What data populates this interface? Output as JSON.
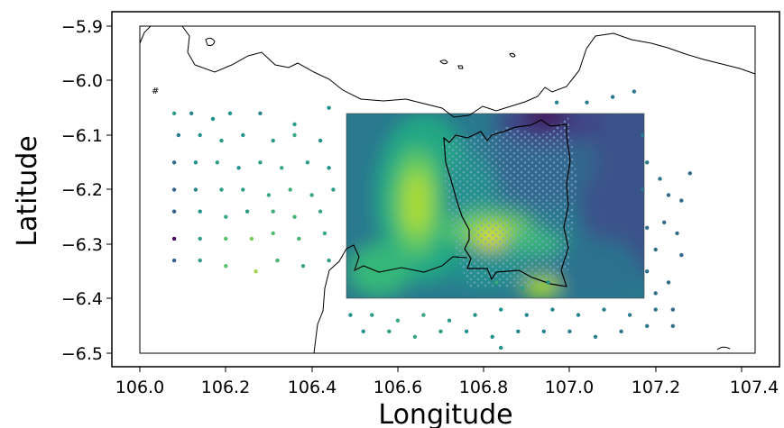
{
  "chart_data": {
    "type": "scatter",
    "xlabel": "Longitude",
    "ylabel": "Latitude",
    "xlim": [
      105.98,
      107.4
    ],
    "ylim": [
      -6.52,
      -5.87
    ],
    "x_ticks": [
      "106.0",
      "106.2",
      "106.4",
      "106.6",
      "106.8",
      "107.0",
      "107.2",
      "107.4"
    ],
    "y_ticks": [
      "−5.9",
      "−6.0",
      "−6.1",
      "−6.2",
      "−6.3",
      "−6.4",
      "−6.5"
    ],
    "grid": false,
    "colormap": "viridis",
    "contour_extent": {
      "lon": [
        106.47,
        107.15
      ],
      "lat": [
        -6.4,
        -6.06
      ]
    },
    "colors": {
      "axis": "#000000",
      "coast": "#000000",
      "viridis": [
        "#440154",
        "#3b528b",
        "#21918c",
        "#5ec962",
        "#fde725"
      ]
    },
    "stations": [
      {
        "lon": 106.08,
        "lat": -6.06,
        "v": 0.55
      },
      {
        "lon": 106.12,
        "lat": -6.06,
        "v": 0.45
      },
      {
        "lon": 106.17,
        "lat": -6.07,
        "v": 0.5
      },
      {
        "lon": 106.21,
        "lat": -6.06,
        "v": 0.5
      },
      {
        "lon": 106.28,
        "lat": -6.06,
        "v": 0.45
      },
      {
        "lon": 106.36,
        "lat": -6.08,
        "v": 0.55
      },
      {
        "lon": 106.44,
        "lat": -6.05,
        "v": 0.5
      },
      {
        "lon": 106.09,
        "lat": -6.1,
        "v": 0.4
      },
      {
        "lon": 106.14,
        "lat": -6.1,
        "v": 0.5
      },
      {
        "lon": 106.19,
        "lat": -6.11,
        "v": 0.55
      },
      {
        "lon": 106.24,
        "lat": -6.1,
        "v": 0.5
      },
      {
        "lon": 106.31,
        "lat": -6.11,
        "v": 0.55
      },
      {
        "lon": 106.36,
        "lat": -6.1,
        "v": 0.6
      },
      {
        "lon": 106.42,
        "lat": -6.11,
        "v": 0.5
      },
      {
        "lon": 106.08,
        "lat": -6.15,
        "v": 0.35
      },
      {
        "lon": 106.13,
        "lat": -6.15,
        "v": 0.5
      },
      {
        "lon": 106.18,
        "lat": -6.15,
        "v": 0.55
      },
      {
        "lon": 106.23,
        "lat": -6.16,
        "v": 0.5
      },
      {
        "lon": 106.28,
        "lat": -6.15,
        "v": 0.55
      },
      {
        "lon": 106.33,
        "lat": -6.16,
        "v": 0.6
      },
      {
        "lon": 106.39,
        "lat": -6.15,
        "v": 0.55
      },
      {
        "lon": 106.44,
        "lat": -6.16,
        "v": 0.5
      },
      {
        "lon": 106.08,
        "lat": -6.2,
        "v": 0.3
      },
      {
        "lon": 106.13,
        "lat": -6.2,
        "v": 0.45
      },
      {
        "lon": 106.19,
        "lat": -6.2,
        "v": 0.55
      },
      {
        "lon": 106.24,
        "lat": -6.2,
        "v": 0.55
      },
      {
        "lon": 106.3,
        "lat": -6.21,
        "v": 0.6
      },
      {
        "lon": 106.35,
        "lat": -6.2,
        "v": 0.62
      },
      {
        "lon": 106.4,
        "lat": -6.21,
        "v": 0.58
      },
      {
        "lon": 106.45,
        "lat": -6.2,
        "v": 0.55
      },
      {
        "lon": 106.08,
        "lat": -6.24,
        "v": 0.3
      },
      {
        "lon": 106.14,
        "lat": -6.24,
        "v": 0.5
      },
      {
        "lon": 106.2,
        "lat": -6.25,
        "v": 0.6
      },
      {
        "lon": 106.25,
        "lat": -6.24,
        "v": 0.55
      },
      {
        "lon": 106.31,
        "lat": -6.24,
        "v": 0.62
      },
      {
        "lon": 106.36,
        "lat": -6.25,
        "v": 0.65
      },
      {
        "lon": 106.42,
        "lat": -6.24,
        "v": 0.6
      },
      {
        "lon": 106.08,
        "lat": -6.29,
        "v": 0.02
      },
      {
        "lon": 106.14,
        "lat": -6.29,
        "v": 0.55
      },
      {
        "lon": 106.2,
        "lat": -6.29,
        "v": 0.7
      },
      {
        "lon": 106.26,
        "lat": -6.29,
        "v": 0.78
      },
      {
        "lon": 106.31,
        "lat": -6.28,
        "v": 0.7
      },
      {
        "lon": 106.37,
        "lat": -6.29,
        "v": 0.65
      },
      {
        "lon": 106.43,
        "lat": -6.28,
        "v": 0.6
      },
      {
        "lon": 106.08,
        "lat": -6.33,
        "v": 0.3
      },
      {
        "lon": 106.14,
        "lat": -6.33,
        "v": 0.55
      },
      {
        "lon": 106.2,
        "lat": -6.34,
        "v": 0.72
      },
      {
        "lon": 106.27,
        "lat": -6.35,
        "v": 0.85
      },
      {
        "lon": 106.32,
        "lat": -6.33,
        "v": 0.65
      },
      {
        "lon": 106.38,
        "lat": -6.34,
        "v": 0.6
      },
      {
        "lon": 106.44,
        "lat": -6.33,
        "v": 0.55
      },
      {
        "lon": 106.49,
        "lat": -6.43,
        "v": 0.5
      },
      {
        "lon": 106.54,
        "lat": -6.43,
        "v": 0.55
      },
      {
        "lon": 106.6,
        "lat": -6.44,
        "v": 0.6
      },
      {
        "lon": 106.66,
        "lat": -6.43,
        "v": 0.6
      },
      {
        "lon": 106.72,
        "lat": -6.44,
        "v": 0.55
      },
      {
        "lon": 106.78,
        "lat": -6.43,
        "v": 0.5
      },
      {
        "lon": 106.84,
        "lat": -6.42,
        "v": 0.5
      },
      {
        "lon": 106.9,
        "lat": -6.43,
        "v": 0.45
      },
      {
        "lon": 106.96,
        "lat": -6.42,
        "v": 0.45
      },
      {
        "lon": 107.02,
        "lat": -6.43,
        "v": 0.45
      },
      {
        "lon": 107.08,
        "lat": -6.42,
        "v": 0.42
      },
      {
        "lon": 107.14,
        "lat": -6.43,
        "v": 0.42
      },
      {
        "lon": 107.2,
        "lat": -6.42,
        "v": 0.4
      },
      {
        "lon": 106.52,
        "lat": -6.46,
        "v": 0.5
      },
      {
        "lon": 106.58,
        "lat": -6.46,
        "v": 0.55
      },
      {
        "lon": 106.64,
        "lat": -6.47,
        "v": 0.6
      },
      {
        "lon": 106.7,
        "lat": -6.46,
        "v": 0.55
      },
      {
        "lon": 106.76,
        "lat": -6.46,
        "v": 0.5
      },
      {
        "lon": 106.82,
        "lat": -6.47,
        "v": 0.5
      },
      {
        "lon": 106.88,
        "lat": -6.46,
        "v": 0.45
      },
      {
        "lon": 106.94,
        "lat": -6.46,
        "v": 0.45
      },
      {
        "lon": 107.0,
        "lat": -6.46,
        "v": 0.42
      },
      {
        "lon": 107.06,
        "lat": -6.47,
        "v": 0.42
      },
      {
        "lon": 107.12,
        "lat": -6.46,
        "v": 0.4
      },
      {
        "lon": 107.18,
        "lat": -6.45,
        "v": 0.38
      },
      {
        "lon": 107.24,
        "lat": -6.45,
        "v": 0.36
      },
      {
        "lon": 106.84,
        "lat": -6.49,
        "v": 0.5
      },
      {
        "lon": 106.83,
        "lat": -6.37,
        "v": 0.6
      },
      {
        "lon": 106.89,
        "lat": -6.38,
        "v": 0.55
      },
      {
        "lon": 106.95,
        "lat": -6.37,
        "v": 0.5
      },
      {
        "lon": 107.17,
        "lat": -6.1,
        "v": 0.4
      },
      {
        "lon": 107.18,
        "lat": -6.15,
        "v": 0.4
      },
      {
        "lon": 107.17,
        "lat": -6.2,
        "v": 0.38
      },
      {
        "lon": 107.21,
        "lat": -6.18,
        "v": 0.38
      },
      {
        "lon": 107.23,
        "lat": -6.21,
        "v": 0.35
      },
      {
        "lon": 107.26,
        "lat": -6.22,
        "v": 0.35
      },
      {
        "lon": 107.28,
        "lat": -6.17,
        "v": 0.35
      },
      {
        "lon": 107.22,
        "lat": -6.26,
        "v": 0.35
      },
      {
        "lon": 107.18,
        "lat": -6.27,
        "v": 0.36
      },
      {
        "lon": 107.25,
        "lat": -6.28,
        "v": 0.34
      },
      {
        "lon": 107.2,
        "lat": -6.31,
        "v": 0.36
      },
      {
        "lon": 107.26,
        "lat": -6.32,
        "v": 0.34
      },
      {
        "lon": 107.18,
        "lat": -6.35,
        "v": 0.36
      },
      {
        "lon": 107.23,
        "lat": -6.37,
        "v": 0.35
      },
      {
        "lon": 107.2,
        "lat": -6.39,
        "v": 0.36
      },
      {
        "lon": 107.24,
        "lat": -6.42,
        "v": 0.34
      },
      {
        "lon": 107.04,
        "lat": -6.04,
        "v": 0.42
      },
      {
        "lon": 107.1,
        "lat": -6.03,
        "v": 0.4
      },
      {
        "lon": 107.15,
        "lat": -6.02,
        "v": 0.4
      },
      {
        "lon": 106.97,
        "lat": -6.04,
        "v": 0.45
      }
    ]
  }
}
